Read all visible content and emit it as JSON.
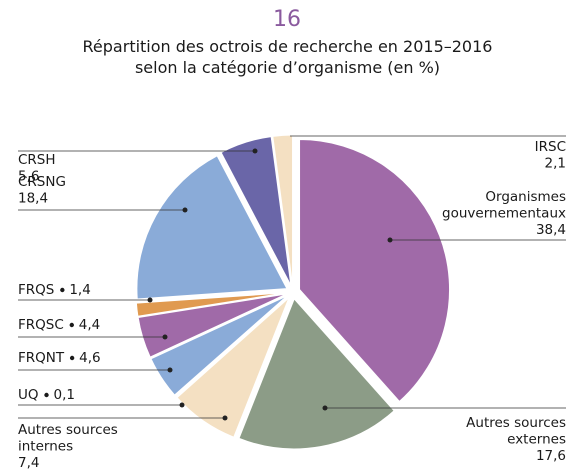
{
  "chart_data": {
    "type": "pie",
    "figure_number": "16",
    "title": "Répartition des octrois de recherche en 2015–2016 selon la catégorie d’organisme (en %)",
    "categories": [
      "Organismes gouvernementaux",
      "Autres sources externes",
      "Autres sources internes",
      "UQ",
      "FRQNT",
      "FRQSC",
      "FRQS",
      "CRSNG",
      "CRSH",
      "IRSC"
    ],
    "values": [
      38.4,
      17.6,
      7.4,
      0.1,
      4.6,
      4.4,
      1.4,
      18.4,
      5.6,
      2.1
    ],
    "value_labels": [
      "38,4",
      "17,6",
      "7,4",
      "0,1",
      "4,6",
      "4,4",
      "1,4",
      "18,4",
      "5,6",
      "2,1"
    ],
    "colors": [
      "#a06aa8",
      "#8c9c87",
      "#f4e0c2",
      "#6a66a8",
      "#8aabd8",
      "#a06aa8",
      "#e09a50",
      "#8aabd8",
      "#6a66a8",
      "#f4e0c2"
    ]
  }
}
